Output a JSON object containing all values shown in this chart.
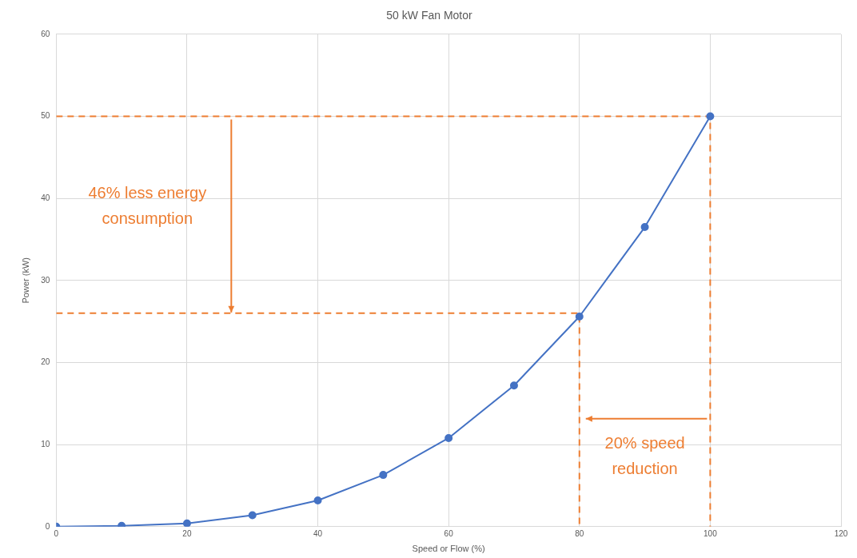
{
  "chart_data": {
    "type": "line",
    "title": "50 kW Fan Motor",
    "xlabel": "Speed or Flow (%)",
    "ylabel": "Power (kW)",
    "x": [
      0,
      10,
      20,
      30,
      40,
      50,
      60,
      70,
      80,
      90,
      100
    ],
    "series": [
      {
        "color": "#4472c4",
        "values": [
          0,
          0.1,
          0.4,
          1.4,
          3.2,
          6.3,
          10.8,
          17.2,
          25.6,
          36.5,
          50
        ],
        "marker": "circle",
        "line_style": "solid"
      },
      {
        "type": "line",
        "color": "#ed7d31",
        "x": [
          0,
          100,
          100
        ],
        "values": [
          50,
          50,
          0
        ],
        "marker": "none",
        "line_style": "dashed"
      },
      {
        "type": "line",
        "color": "#ed7d31",
        "x": [
          0,
          80,
          80
        ],
        "values": [
          26,
          26,
          0
        ],
        "marker": "none",
        "line_style": "dashed"
      }
    ],
    "xlim": [
      0,
      120
    ],
    "xticks": [
      0,
      20,
      40,
      60,
      80,
      100,
      120
    ],
    "ylim": [
      0,
      60
    ],
    "yticks": [
      0,
      10,
      20,
      30,
      40,
      50,
      60
    ],
    "grid": true,
    "legend": false,
    "annotations": [
      "46% less energy consumption",
      "20% speed reduction"
    ]
  }
}
